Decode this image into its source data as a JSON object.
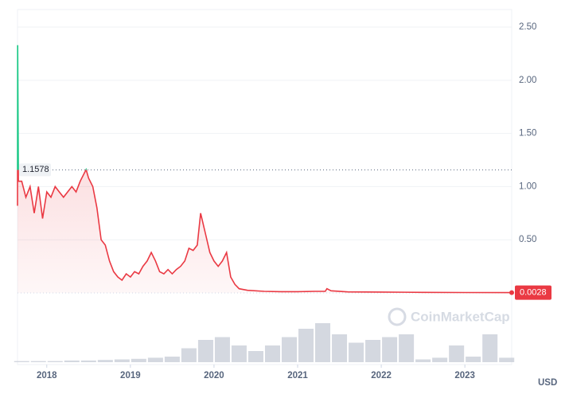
{
  "chart_data": {
    "type": "line",
    "x": [
      2017.65,
      2017.652,
      2017.66,
      2017.7,
      2017.75,
      2017.8,
      2017.85,
      2017.9,
      2017.95,
      2018.0,
      2018.05,
      2018.1,
      2018.15,
      2018.2,
      2018.25,
      2018.3,
      2018.35,
      2018.4,
      2018.47,
      2018.5,
      2018.55,
      2018.6,
      2018.65,
      2018.7,
      2018.75,
      2018.8,
      2018.85,
      2018.9,
      2018.95,
      2019.0,
      2019.05,
      2019.1,
      2019.15,
      2019.2,
      2019.25,
      2019.3,
      2019.35,
      2019.4,
      2019.45,
      2019.5,
      2019.55,
      2019.6,
      2019.65,
      2019.7,
      2019.75,
      2019.8,
      2019.84,
      2019.9,
      2019.95,
      2020.0,
      2020.05,
      2020.1,
      2020.15,
      2020.2,
      2020.25,
      2020.3,
      2020.4,
      2020.6,
      2020.8,
      2021.0,
      2021.2,
      2021.33,
      2021.35,
      2021.4,
      2021.6,
      2022.0,
      2022.5,
      2023.0,
      2023.56
    ],
    "values": [
      0.82,
      2.33,
      1.05,
      1.05,
      0.9,
      1.0,
      0.75,
      1.0,
      0.7,
      0.95,
      0.9,
      1.0,
      0.95,
      0.9,
      0.95,
      1.0,
      0.95,
      1.05,
      1.16,
      1.08,
      1.0,
      0.8,
      0.5,
      0.45,
      0.3,
      0.2,
      0.15,
      0.12,
      0.18,
      0.15,
      0.2,
      0.18,
      0.25,
      0.3,
      0.38,
      0.3,
      0.2,
      0.18,
      0.22,
      0.18,
      0.22,
      0.25,
      0.3,
      0.42,
      0.4,
      0.45,
      0.75,
      0.55,
      0.38,
      0.3,
      0.25,
      0.3,
      0.38,
      0.15,
      0.08,
      0.04,
      0.025,
      0.015,
      0.012,
      0.012,
      0.015,
      0.015,
      0.04,
      0.02,
      0.01,
      0.008,
      0.005,
      0.004,
      0.0028
    ],
    "up_color": "#16c784",
    "down_color": "#ea3943",
    "baseline": 1.1578,
    "xlim": [
      2017.65,
      2023.56
    ],
    "xticks": [
      2018,
      2019,
      2020,
      2021,
      2022,
      2023
    ],
    "ylim": [
      0,
      2.65
    ],
    "yticks": [
      {
        "value": 0.5,
        "label": "0.50"
      },
      {
        "value": 1,
        "label": "1.00"
      },
      {
        "value": 1.5,
        "label": "1.50"
      },
      {
        "value": 2,
        "label": "2.00"
      },
      {
        "value": 2.5,
        "label": "2.50"
      }
    ],
    "grid": true,
    "currency": "USD",
    "watermark": "CoinMarketCap",
    "volume": {
      "color": "#c9ced8",
      "x": [
        2017.7,
        2017.9,
        2018.1,
        2018.3,
        2018.5,
        2018.7,
        2018.9,
        2019.1,
        2019.3,
        2019.5,
        2019.7,
        2019.9,
        2020.1,
        2020.3,
        2020.5,
        2020.7,
        2020.9,
        2021.1,
        2021.3,
        2021.5,
        2021.7,
        2021.9,
        2022.1,
        2022.3,
        2022.5,
        2022.7,
        2022.9,
        2023.1,
        2023.3,
        2023.5
      ],
      "values": [
        2,
        2,
        2,
        3,
        3,
        4,
        5,
        6,
        8,
        10,
        25,
        40,
        45,
        30,
        20,
        30,
        45,
        60,
        70,
        50,
        35,
        40,
        45,
        50,
        5,
        8,
        30,
        10,
        50,
        8
      ]
    }
  }
}
